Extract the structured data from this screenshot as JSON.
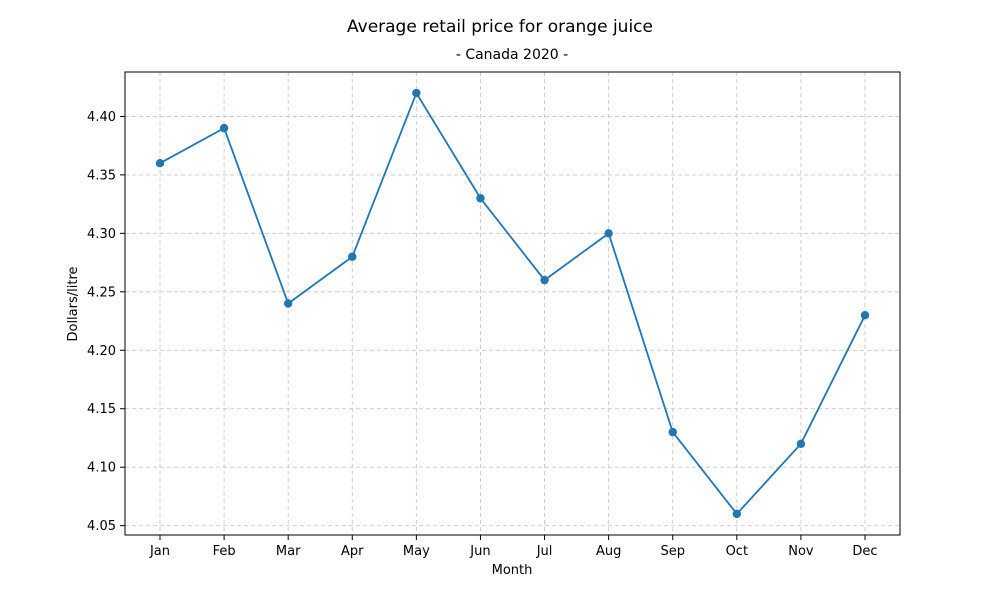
{
  "chart_data": {
    "type": "line",
    "title": "Average retail price for orange juice",
    "subtitle": "- Canada 2020 -",
    "xlabel": "Month",
    "ylabel": "Dollars/litre",
    "categories": [
      "Jan",
      "Feb",
      "Mar",
      "Apr",
      "May",
      "Jun",
      "Jul",
      "Aug",
      "Sep",
      "Oct",
      "Nov",
      "Dec"
    ],
    "series": [
      {
        "values": [
          4.36,
          4.39,
          4.24,
          4.28,
          4.42,
          4.33,
          4.26,
          4.3,
          4.13,
          4.06,
          4.12,
          4.23
        ],
        "color": "#1f77b4",
        "marker": "circle"
      }
    ],
    "ylim": [
      4.042,
      4.438
    ],
    "yticks": [
      "4.05",
      "4.10",
      "4.15",
      "4.20",
      "4.25",
      "4.30",
      "4.35",
      "4.40"
    ],
    "grid": true,
    "grid_color": "#c8c8c8"
  }
}
